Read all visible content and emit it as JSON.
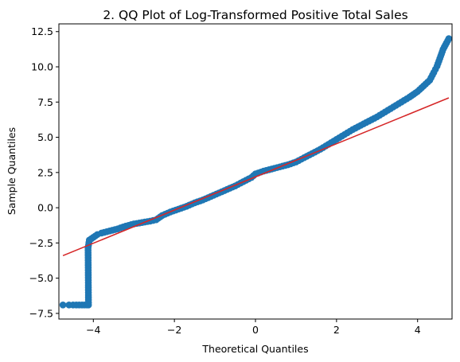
{
  "chart_data": {
    "type": "scatter",
    "title": "2. QQ Plot of Log-Transformed Positive Total Sales",
    "xlabel": "Theoretical Quantiles",
    "ylabel": "Sample Quantiles",
    "xlim": [
      -4.85,
      4.85
    ],
    "ylim": [
      -7.9,
      13.05
    ],
    "x_ticks": [
      -4,
      -2,
      0,
      2,
      4
    ],
    "x_tick_labels": [
      "−4",
      "−2",
      "0",
      "2",
      "4"
    ],
    "y_ticks": [
      -7.5,
      -5.0,
      -2.5,
      0.0,
      2.5,
      5.0,
      7.5,
      10.0,
      12.5
    ],
    "y_tick_labels": [
      "−7.5",
      "−5.0",
      "−2.5",
      "0.0",
      "2.5",
      "5.0",
      "7.5",
      "10.0",
      "12.5"
    ],
    "grid": false,
    "colors": {
      "points": "#1f77b4",
      "line": "#d62728"
    },
    "series": [
      {
        "kind": "scatter",
        "points": [
          [
            -4.75,
            -6.9
          ],
          [
            -4.6,
            -6.9
          ],
          [
            -4.5,
            -6.9
          ],
          [
            -4.42,
            -6.9
          ],
          [
            -4.35,
            -6.9
          ],
          [
            -4.28,
            -6.9
          ],
          [
            -4.22,
            -6.9
          ],
          [
            -4.16,
            -6.9
          ],
          [
            -4.12,
            -6.9
          ],
          [
            -4.13,
            -2.85
          ],
          [
            -4.1,
            -2.3
          ],
          [
            -4.0,
            -2.1
          ],
          [
            -3.9,
            -1.9
          ],
          [
            -3.8,
            -1.8
          ],
          [
            -3.6,
            -1.65
          ],
          [
            -3.4,
            -1.5
          ],
          [
            -3.2,
            -1.3
          ],
          [
            -3.0,
            -1.15
          ],
          [
            -2.8,
            -1.05
          ],
          [
            -2.6,
            -0.95
          ],
          [
            -2.45,
            -0.85
          ],
          [
            -2.3,
            -0.55
          ],
          [
            -2.1,
            -0.3
          ],
          [
            -1.9,
            -0.1
          ],
          [
            -1.7,
            0.1
          ],
          [
            -1.5,
            0.35
          ],
          [
            -1.3,
            0.55
          ],
          [
            -1.1,
            0.8
          ],
          [
            -0.9,
            1.05
          ],
          [
            -0.7,
            1.3
          ],
          [
            -0.5,
            1.55
          ],
          [
            -0.3,
            1.85
          ],
          [
            -0.1,
            2.15
          ],
          [
            0.0,
            2.4
          ],
          [
            0.2,
            2.6
          ],
          [
            0.4,
            2.75
          ],
          [
            0.6,
            2.9
          ],
          [
            0.8,
            3.05
          ],
          [
            1.0,
            3.25
          ],
          [
            1.2,
            3.55
          ],
          [
            1.4,
            3.85
          ],
          [
            1.6,
            4.15
          ],
          [
            1.8,
            4.5
          ],
          [
            2.0,
            4.85
          ],
          [
            2.2,
            5.2
          ],
          [
            2.4,
            5.55
          ],
          [
            2.6,
            5.85
          ],
          [
            2.8,
            6.15
          ],
          [
            3.0,
            6.45
          ],
          [
            3.2,
            6.8
          ],
          [
            3.4,
            7.15
          ],
          [
            3.6,
            7.5
          ],
          [
            3.8,
            7.85
          ],
          [
            4.0,
            8.25
          ],
          [
            4.15,
            8.65
          ],
          [
            4.3,
            9.05
          ],
          [
            4.4,
            9.6
          ],
          [
            4.48,
            10.05
          ],
          [
            4.55,
            10.6
          ],
          [
            4.63,
            11.25
          ],
          [
            4.77,
            12.0
          ]
        ]
      },
      {
        "kind": "line",
        "points": [
          [
            -4.75,
            -3.4
          ],
          [
            4.77,
            7.8
          ]
        ]
      }
    ]
  }
}
